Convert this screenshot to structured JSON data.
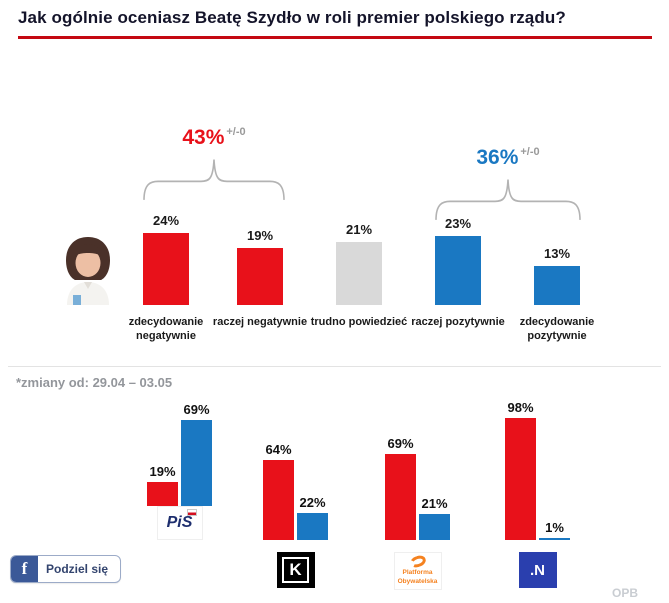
{
  "title": "Jak ogólnie oceniasz Beatę Szydło w roli premier polskiego rządu?",
  "footnote": "*zmiany od: 29.04 – 03.05",
  "watermark": "OPB",
  "share": {
    "label": "Podziel się",
    "icon": "facebook-icon"
  },
  "colors": {
    "red": "#e8111a",
    "blue": "#1a78c2",
    "gray": "#d9d9d9"
  },
  "chart_data": [
    {
      "type": "bar",
      "title": "Jak ogólnie oceniasz Beatę Szydło w roli premier polskiego rządu?",
      "categories": [
        "zdecydowanie negatywnie",
        "raczej negatywnie",
        "trudno powiedzieć",
        "raczej pozytywnie",
        "zdecydowanie pozytywnie"
      ],
      "values": [
        24,
        19,
        21,
        23,
        13
      ],
      "bar_colors": [
        "red",
        "red",
        "gray",
        "blue",
        "blue"
      ],
      "ylim": [
        0,
        30
      ],
      "legend": "none",
      "aggregates": [
        {
          "label": "43%",
          "change": "+/-0",
          "color": "red",
          "spans": [
            "zdecydowanie negatywnie",
            "raczej negatywnie"
          ]
        },
        {
          "label": "36%",
          "change": "+/-0",
          "color": "blue",
          "spans": [
            "raczej pozytywnie",
            "zdecydowanie pozytywnie"
          ]
        }
      ]
    },
    {
      "type": "bar",
      "categories": [
        "PiS",
        "K",
        "Platforma Obywatelska",
        ".N"
      ],
      "series": [
        {
          "name": "red-series",
          "color": "red",
          "values": [
            19,
            64,
            69,
            98
          ]
        },
        {
          "name": "blue-series",
          "color": "blue",
          "values": [
            69,
            22,
            21,
            1
          ]
        }
      ],
      "ylim": [
        0,
        100
      ],
      "legend": "none"
    }
  ]
}
